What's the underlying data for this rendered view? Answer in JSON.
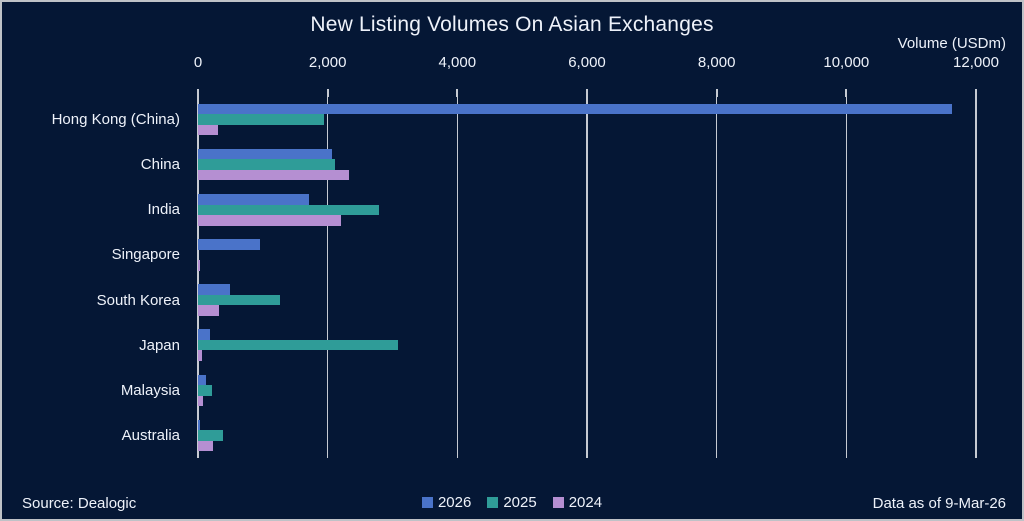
{
  "chart_data": {
    "type": "bar",
    "orientation": "horizontal",
    "title": "New Listing Volumes On Asian Exchanges",
    "axis_title": "Volume (USDm)",
    "xlabel": "Volume (USDm)",
    "ylabel": "",
    "xlim": [
      0,
      12000
    ],
    "grid": true,
    "legend_position": "bottom-center",
    "x_ticks": [
      {
        "value": 0,
        "label": "0"
      },
      {
        "value": 2000,
        "label": "2,000"
      },
      {
        "value": 4000,
        "label": "4,000"
      },
      {
        "value": 6000,
        "label": "6,000"
      },
      {
        "value": 8000,
        "label": "8,000"
      },
      {
        "value": 10000,
        "label": "10,000"
      },
      {
        "value": 12000,
        "label": "12,000"
      }
    ],
    "categories": [
      "Hong Kong (China)",
      "China",
      "India",
      "Singapore",
      "South Korea",
      "Japan",
      "Malaysia",
      "Australia"
    ],
    "series": [
      {
        "name": "2026",
        "color": "#4a73c9",
        "values": [
          11630,
          2060,
          1710,
          960,
          490,
          180,
          120,
          25
        ]
      },
      {
        "name": "2025",
        "color": "#2f9c98",
        "values": [
          1950,
          2120,
          2790,
          0,
          1260,
          3090,
          215,
          390
        ]
      },
      {
        "name": "2024",
        "color": "#b58fd2",
        "values": [
          310,
          2330,
          2210,
          30,
          325,
          60,
          80,
          230
        ]
      }
    ]
  },
  "footer": {
    "source": "Source: Dealogic",
    "as_of": "Data as of 9-Mar-26"
  },
  "colors": {
    "background": "#051735",
    "border": "#bfc2c7",
    "text": "#eef2fa",
    "gridline": "#c6cad2"
  }
}
